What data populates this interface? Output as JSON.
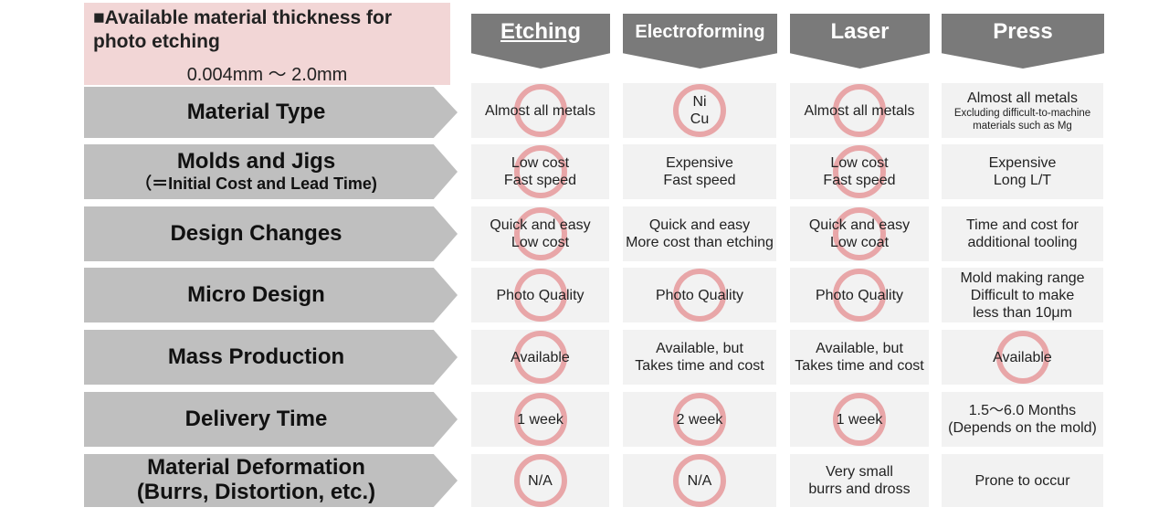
{
  "info": {
    "title": "■Available material thickness for photo etching",
    "range": "0.004mm ～ 2.0mm"
  },
  "columns": [
    "Etching",
    "Electroforming",
    "Laser",
    "Press"
  ],
  "rows": [
    {
      "label": "Material Type",
      "sublabel": "",
      "cells": [
        {
          "lines": [
            "Almost all metals"
          ],
          "ring": true
        },
        {
          "lines": [
            "Ni",
            "Cu"
          ],
          "ring": true
        },
        {
          "lines": [
            "Almost all metals"
          ],
          "ring": true
        },
        {
          "lines": [
            "Almost all metals"
          ],
          "small": [
            "Excluding difficult-to-machine",
            "materials such as Mg"
          ],
          "ring": false
        }
      ]
    },
    {
      "label": "Molds and Jigs",
      "sublabel": "（＝Initial Cost and Lead Time)",
      "cells": [
        {
          "lines": [
            "Low cost",
            "Fast speed"
          ],
          "ring": true
        },
        {
          "lines": [
            "Expensive",
            "Fast speed"
          ],
          "ring": false
        },
        {
          "lines": [
            "Low cost",
            "Fast speed"
          ],
          "ring": true
        },
        {
          "lines": [
            "Expensive",
            "Long L/T"
          ],
          "ring": false
        }
      ]
    },
    {
      "label": "Design Changes",
      "sublabel": "",
      "cells": [
        {
          "lines": [
            "Quick and easy",
            "Low cost"
          ],
          "ring": true
        },
        {
          "lines": [
            "Quick and easy",
            "More cost than etching"
          ],
          "ring": false
        },
        {
          "lines": [
            "Quick and easy",
            "Low coat"
          ],
          "ring": true
        },
        {
          "lines": [
            "Time and cost for",
            "additional tooling"
          ],
          "ring": false
        }
      ]
    },
    {
      "label": "Micro Design",
      "sublabel": "",
      "cells": [
        {
          "lines": [
            "Photo Quality"
          ],
          "ring": true
        },
        {
          "lines": [
            "Photo Quality"
          ],
          "ring": true
        },
        {
          "lines": [
            "Photo Quality"
          ],
          "ring": true
        },
        {
          "lines": [
            "Mold making range",
            "Difficult to make",
            "less than 10μm"
          ],
          "ring": false
        }
      ]
    },
    {
      "label": "Mass Production",
      "sublabel": "",
      "cells": [
        {
          "lines": [
            "Available"
          ],
          "ring": true
        },
        {
          "lines": [
            "Available, but",
            "Takes time and cost"
          ],
          "ring": false
        },
        {
          "lines": [
            "Available, but",
            "Takes time and cost"
          ],
          "ring": false
        },
        {
          "lines": [
            "Available"
          ],
          "ring": true
        }
      ]
    },
    {
      "label": "Delivery Time",
      "sublabel": "",
      "cells": [
        {
          "lines": [
            "1 week"
          ],
          "ring": true
        },
        {
          "lines": [
            "2 week"
          ],
          "ring": true
        },
        {
          "lines": [
            "1 week"
          ],
          "ring": true
        },
        {
          "lines": [
            "1.5～6.0 Months",
            "(Depends on the mold)"
          ],
          "ring": false
        }
      ]
    },
    {
      "label": "Material Deformation",
      "sublabel": "(Burrs, Distortion, etc.)",
      "cells": [
        {
          "lines": [
            "N/A"
          ],
          "ring": true
        },
        {
          "lines": [
            "N/A"
          ],
          "ring": true
        },
        {
          "lines": [
            "Very small",
            "burrs and dross"
          ],
          "ring": false
        },
        {
          "lines": [
            "Prone to occur"
          ],
          "ring": false
        }
      ]
    }
  ],
  "colors": {
    "header": "#7a7a7a",
    "row_header": "#bfbfbf",
    "cell": "#f2f2f2",
    "ring": "#e8a6a8",
    "info_bg": "#f2d6d6"
  }
}
